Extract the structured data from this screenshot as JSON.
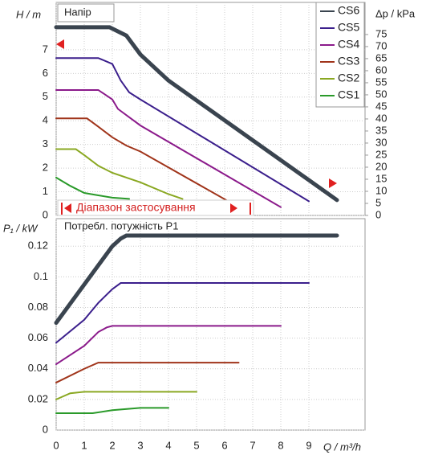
{
  "chart_data": [
    {
      "type": "line",
      "title": "Напір",
      "ylabel": "H / m",
      "y2label": "Δp / kPa",
      "annotation": "Діапазон застосування",
      "xlim": [
        0,
        11
      ],
      "xticks": [
        0,
        1,
        2,
        3,
        4,
        5,
        6,
        7,
        8,
        9
      ],
      "ylim": [
        0,
        9
      ],
      "yticks": [
        0,
        1,
        2,
        3,
        4,
        5,
        6,
        7
      ],
      "y2lim": [
        0,
        88.3
      ],
      "y2ticks": [
        0,
        5,
        10,
        15,
        20,
        25,
        30,
        35,
        40,
        45,
        50,
        55,
        60,
        65,
        70,
        75
      ],
      "grid": true,
      "legend": "upper right",
      "series": [
        {
          "name": "CS6",
          "color": "#3a444f",
          "x": [
            0,
            1.9,
            2.5,
            3,
            4,
            10
          ],
          "values": [
            7.95,
            7.95,
            7.6,
            6.8,
            5.7,
            0.65
          ]
        },
        {
          "name": "CS5",
          "color": "#3b1f8c",
          "x": [
            0,
            1.5,
            2,
            2.3,
            2.6,
            3,
            9
          ],
          "values": [
            6.65,
            6.65,
            6.4,
            5.7,
            5.2,
            4.9,
            0.6
          ]
        },
        {
          "name": "CS4",
          "color": "#8b1a8b",
          "x": [
            0,
            1.5,
            2,
            2.2,
            2.6,
            3,
            8
          ],
          "values": [
            5.3,
            5.3,
            4.9,
            4.5,
            4.15,
            3.8,
            0.35
          ]
        },
        {
          "name": "CS3",
          "color": "#a0341a",
          "x": [
            0,
            1.1,
            1.5,
            2,
            2.5,
            3,
            6.5
          ],
          "values": [
            4.1,
            4.1,
            3.75,
            3.3,
            2.95,
            2.7,
            0.35
          ]
        },
        {
          "name": "CS2",
          "color": "#8aa822",
          "x": [
            0,
            0.7,
            1,
            1.5,
            2,
            3,
            4,
            4.5
          ],
          "values": [
            2.8,
            2.8,
            2.55,
            2.1,
            1.8,
            1.4,
            0.9,
            0.7
          ]
        },
        {
          "name": "CS1",
          "color": "#2a9a2a",
          "x": [
            0,
            0.5,
            1,
            1.5,
            2,
            2.6
          ],
          "values": [
            1.6,
            1.25,
            0.95,
            0.85,
            0.75,
            0.7
          ]
        }
      ]
    },
    {
      "type": "line",
      "title": "Потребл. потужність P1",
      "ylabel": "P₁ / kW",
      "xlabel": "Q / m³/h",
      "xlim": [
        0,
        11
      ],
      "xticks": [
        0,
        1,
        2,
        3,
        4,
        5,
        6,
        7,
        8,
        9
      ],
      "ylim": [
        0,
        0.138
      ],
      "yticks": [
        0,
        0.02,
        0.04,
        0.06,
        0.08,
        0.1,
        0.12
      ],
      "grid": true,
      "series": [
        {
          "name": "CS6",
          "color": "#3a444f",
          "x": [
            0,
            2,
            2.3,
            2.5,
            10
          ],
          "values": [
            0.07,
            0.12,
            0.125,
            0.127,
            0.127
          ]
        },
        {
          "name": "CS5",
          "color": "#3b1f8c",
          "x": [
            0,
            1,
            1.5,
            2,
            2.3,
            9
          ],
          "values": [
            0.057,
            0.072,
            0.083,
            0.092,
            0.096,
            0.096
          ]
        },
        {
          "name": "CS4",
          "color": "#8b1a8b",
          "x": [
            0,
            1,
            1.5,
            1.8,
            2,
            8
          ],
          "values": [
            0.043,
            0.055,
            0.064,
            0.067,
            0.068,
            0.068
          ]
        },
        {
          "name": "CS3",
          "color": "#a0341a",
          "x": [
            0,
            1,
            1.5,
            6.5
          ],
          "values": [
            0.031,
            0.04,
            0.044,
            0.044
          ]
        },
        {
          "name": "CS2",
          "color": "#8aa822",
          "x": [
            0,
            0.5,
            1,
            5
          ],
          "values": [
            0.02,
            0.024,
            0.025,
            0.025
          ]
        },
        {
          "name": "CS1",
          "color": "#2a9a2a",
          "x": [
            0,
            1.3,
            2,
            3,
            4
          ],
          "values": [
            0.011,
            0.011,
            0.013,
            0.0145,
            0.0145
          ]
        }
      ]
    }
  ]
}
